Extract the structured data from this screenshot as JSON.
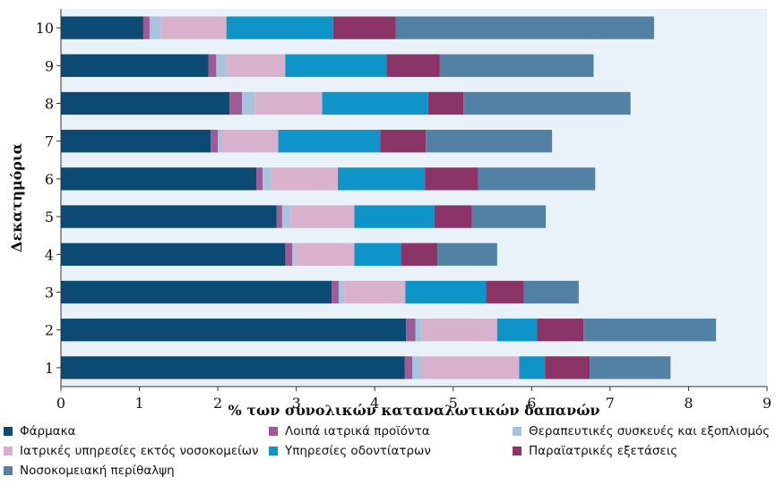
{
  "chart_data": {
    "type": "bar",
    "orientation": "horizontal",
    "stacked": true,
    "title": "",
    "xlabel": "% των συνολικών  καταναλωτικών δαπανών",
    "ylabel": "Δεκατημόρια",
    "xlim": [
      0,
      9
    ],
    "x_ticks": [
      "0",
      "1",
      "2",
      "3",
      "4",
      "5",
      "6",
      "7",
      "8",
      "9"
    ],
    "grid": false,
    "legend_position": "bottom",
    "categories": [
      "1",
      "2",
      "3",
      "4",
      "5",
      "6",
      "7",
      "8",
      "9",
      "10"
    ],
    "series": [
      {
        "name": "Φάρμακα",
        "color": "#0b4a73",
        "values": [
          4.38,
          4.4,
          3.45,
          2.86,
          2.75,
          2.49,
          1.91,
          2.15,
          1.88,
          1.05
        ]
      },
      {
        "name": "Λοιπά ιατρικά προϊόντα",
        "color": "#9e5b97",
        "values": [
          0.1,
          0.12,
          0.09,
          0.09,
          0.07,
          0.08,
          0.09,
          0.16,
          0.1,
          0.08
        ]
      },
      {
        "name": "Θεραπευτικές συσκευές και εξοπλισμός",
        "color": "#a8c4dc",
        "values": [
          0.1,
          0.08,
          0.07,
          0.03,
          0.1,
          0.11,
          0.05,
          0.16,
          0.13,
          0.14
        ]
      },
      {
        "name": "Ιατρικές υπηρεσίες εκτός νοσοκομείων",
        "color": "#d8b2cc",
        "values": [
          1.26,
          0.96,
          0.78,
          0.76,
          0.82,
          0.85,
          0.72,
          0.86,
          0.75,
          0.84
        ]
      },
      {
        "name": "Υπηρεσίες οδοντίατρων",
        "color": "#0f94c8",
        "values": [
          0.33,
          0.51,
          1.03,
          0.6,
          1.02,
          1.11,
          1.3,
          1.35,
          1.29,
          1.36
        ]
      },
      {
        "name": "Παραϊατρικές εξετάσεις",
        "color": "#8a3467",
        "values": [
          0.57,
          0.59,
          0.48,
          0.46,
          0.48,
          0.68,
          0.58,
          0.45,
          0.68,
          0.8
        ]
      },
      {
        "name": "Νοσοκομειακή περίθαλψη",
        "color": "#5381a5",
        "values": [
          1.03,
          1.69,
          0.7,
          0.76,
          0.94,
          1.49,
          1.61,
          2.13,
          1.96,
          3.29
        ]
      }
    ]
  }
}
